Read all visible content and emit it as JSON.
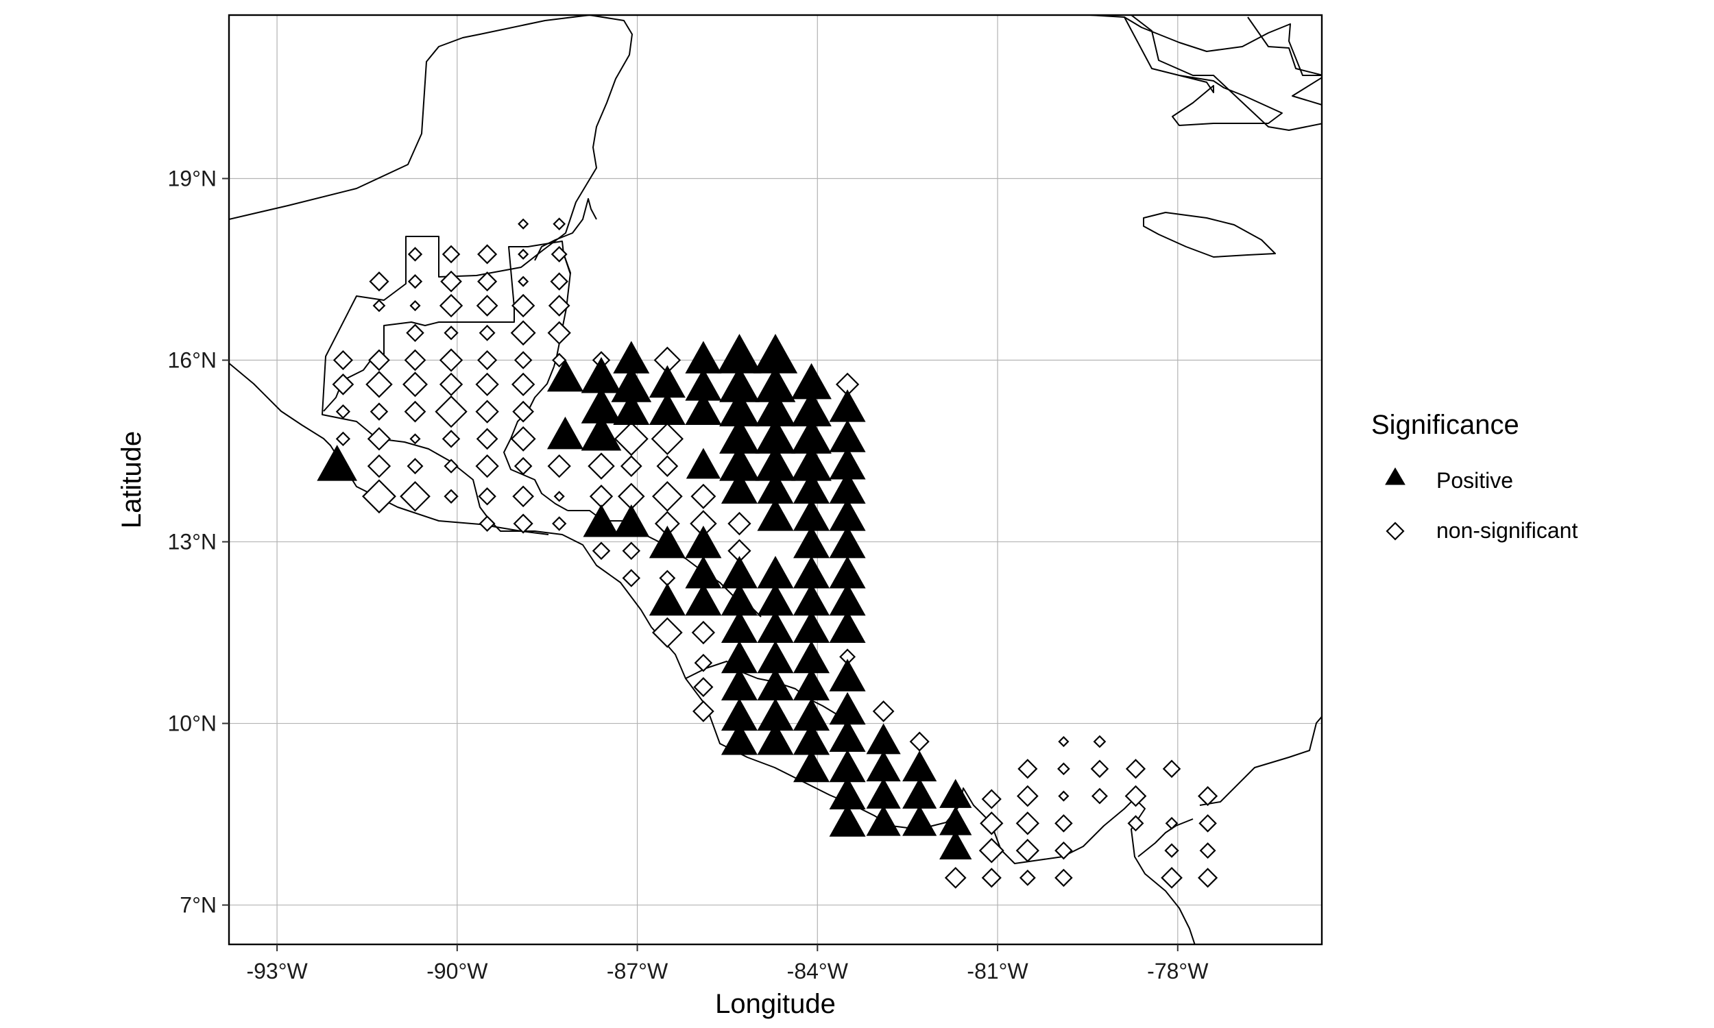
{
  "chart_data": {
    "type": "scatter",
    "subtype": "map",
    "xlabel": "Longitude",
    "ylabel": "Latitude",
    "xlim": [
      -93.8,
      -75.6
    ],
    "ylim": [
      6.35,
      21.7
    ],
    "xticks": [
      -93,
      -90,
      -87,
      -84,
      -81,
      -78
    ],
    "yticks": [
      7,
      10,
      13,
      16,
      19
    ],
    "xtick_labels": [
      "-93°W",
      "-90°W",
      "-87°W",
      "-84°W",
      "-81°W",
      "-78°W"
    ],
    "ytick_labels": [
      "7°N",
      "10°N",
      "13°N",
      "16°N",
      "19°N"
    ],
    "grid": true,
    "legend": {
      "title": "Significance",
      "position": "right",
      "entries": [
        {
          "label": "Positive",
          "shape": "triangle-filled"
        },
        {
          "label": "non-significant",
          "shape": "diamond-open"
        }
      ]
    },
    "series": [
      {
        "name": "Positive",
        "shape": "triangle-filled",
        "points": [
          [
            -92,
            14.25,
            1.0
          ],
          [
            -88.2,
            15.7,
            0.9
          ],
          [
            -88.2,
            14.75,
            0.9
          ],
          [
            -87.6,
            15.7,
            1.0
          ],
          [
            -87.6,
            15.2,
            1.0
          ],
          [
            -87.6,
            14.75,
            1.0
          ],
          [
            -87.6,
            13.3,
            0.9
          ],
          [
            -87.1,
            16.0,
            0.9
          ],
          [
            -87.1,
            15.55,
            1.0
          ],
          [
            -87.1,
            15.15,
            0.9
          ],
          [
            -87.1,
            13.3,
            0.9
          ],
          [
            -86.5,
            15.6,
            0.9
          ],
          [
            -86.5,
            15.15,
            0.9
          ],
          [
            -86.5,
            12.95,
            0.9
          ],
          [
            -86.5,
            12.0,
            0.9
          ],
          [
            -85.9,
            16.0,
            0.9
          ],
          [
            -85.9,
            15.55,
            0.9
          ],
          [
            -85.9,
            15.15,
            0.9
          ],
          [
            -85.9,
            14.25,
            0.85
          ],
          [
            -85.9,
            12.95,
            0.9
          ],
          [
            -85.9,
            12.45,
            0.9
          ],
          [
            -85.9,
            12.0,
            0.9
          ],
          [
            -85.3,
            16.05,
            1.1
          ],
          [
            -85.3,
            15.55,
            1.0
          ],
          [
            -85.3,
            15.15,
            1.0
          ],
          [
            -85.3,
            14.7,
            1.0
          ],
          [
            -85.3,
            14.25,
            1.0
          ],
          [
            -85.3,
            13.85,
            0.9
          ],
          [
            -85.3,
            12.45,
            0.9
          ],
          [
            -85.3,
            12.0,
            0.9
          ],
          [
            -85.3,
            11.55,
            0.9
          ],
          [
            -85.3,
            11.05,
            0.9
          ],
          [
            -85.3,
            10.6,
            0.9
          ],
          [
            -85.3,
            10.1,
            0.9
          ],
          [
            -85.3,
            9.7,
            0.9
          ],
          [
            -84.7,
            16.05,
            1.1
          ],
          [
            -84.7,
            15.55,
            1.0
          ],
          [
            -84.7,
            15.15,
            1.0
          ],
          [
            -84.7,
            14.7,
            1.0
          ],
          [
            -84.7,
            14.25,
            1.0
          ],
          [
            -84.7,
            13.85,
            0.9
          ],
          [
            -84.7,
            13.4,
            0.9
          ],
          [
            -84.7,
            12.45,
            0.9
          ],
          [
            -84.7,
            12.0,
            0.9
          ],
          [
            -84.7,
            11.55,
            0.9
          ],
          [
            -84.7,
            11.05,
            0.9
          ],
          [
            -84.7,
            10.6,
            0.9
          ],
          [
            -84.7,
            10.1,
            0.9
          ],
          [
            -84.7,
            9.7,
            0.9
          ],
          [
            -84.1,
            15.6,
            1.0
          ],
          [
            -84.1,
            15.15,
            1.0
          ],
          [
            -84.1,
            14.7,
            1.0
          ],
          [
            -84.1,
            14.25,
            1.0
          ],
          [
            -84.1,
            13.85,
            0.9
          ],
          [
            -84.1,
            13.4,
            0.9
          ],
          [
            -84.1,
            12.95,
            0.9
          ],
          [
            -84.1,
            12.45,
            0.9
          ],
          [
            -84.1,
            12.0,
            0.9
          ],
          [
            -84.1,
            11.55,
            0.9
          ],
          [
            -84.1,
            11.05,
            0.9
          ],
          [
            -84.1,
            10.6,
            0.9
          ],
          [
            -84.1,
            10.1,
            0.9
          ],
          [
            -84.1,
            9.7,
            0.9
          ],
          [
            -84.1,
            9.25,
            0.9
          ],
          [
            -83.5,
            15.2,
            0.9
          ],
          [
            -83.5,
            14.7,
            0.9
          ],
          [
            -83.5,
            14.25,
            0.9
          ],
          [
            -83.5,
            13.85,
            0.9
          ],
          [
            -83.5,
            13.4,
            0.9
          ],
          [
            -83.5,
            12.95,
            0.9
          ],
          [
            -83.5,
            12.45,
            0.9
          ],
          [
            -83.5,
            12.0,
            0.9
          ],
          [
            -83.5,
            11.55,
            0.9
          ],
          [
            -83.5,
            10.75,
            0.9
          ],
          [
            -83.5,
            10.2,
            0.9
          ],
          [
            -83.5,
            9.75,
            0.9
          ],
          [
            -83.5,
            9.25,
            0.9
          ],
          [
            -83.5,
            8.8,
            0.9
          ],
          [
            -83.5,
            8.35,
            0.9
          ],
          [
            -82.9,
            9.7,
            0.85
          ],
          [
            -82.9,
            9.25,
            0.85
          ],
          [
            -82.9,
            8.8,
            0.85
          ],
          [
            -82.9,
            8.35,
            0.85
          ],
          [
            -82.3,
            9.25,
            0.85
          ],
          [
            -82.3,
            8.8,
            0.85
          ],
          [
            -82.3,
            8.35,
            0.85
          ],
          [
            -81.7,
            8.8,
            0.8
          ],
          [
            -81.7,
            8.35,
            0.8
          ],
          [
            -81.7,
            7.95,
            0.8
          ]
        ]
      },
      {
        "name": "non-significant",
        "shape": "diamond-open",
        "points": [
          [
            -91.3,
            17.3,
            0.5
          ],
          [
            -90.7,
            17.75,
            0.35
          ],
          [
            -90.1,
            17.75,
            0.45
          ],
          [
            -89.5,
            17.75,
            0.5
          ],
          [
            -88.9,
            18.25,
            0.25
          ],
          [
            -88.9,
            17.75,
            0.25
          ],
          [
            -88.3,
            18.25,
            0.3
          ],
          [
            -88.3,
            17.75,
            0.4
          ],
          [
            -90.7,
            17.3,
            0.35
          ],
          [
            -90.1,
            17.3,
            0.55
          ],
          [
            -89.5,
            17.3,
            0.5
          ],
          [
            -88.9,
            17.3,
            0.25
          ],
          [
            -88.3,
            17.3,
            0.45
          ],
          [
            -91.3,
            16.9,
            0.3
          ],
          [
            -90.7,
            16.9,
            0.25
          ],
          [
            -90.1,
            16.9,
            0.6
          ],
          [
            -89.5,
            16.9,
            0.55
          ],
          [
            -88.9,
            16.9,
            0.6
          ],
          [
            -88.3,
            16.9,
            0.55
          ],
          [
            -90.7,
            16.45,
            0.45
          ],
          [
            -90.1,
            16.45,
            0.35
          ],
          [
            -89.5,
            16.45,
            0.4
          ],
          [
            -88.9,
            16.45,
            0.65
          ],
          [
            -88.3,
            16.45,
            0.6
          ],
          [
            -91.9,
            16.0,
            0.5
          ],
          [
            -91.3,
            16.0,
            0.55
          ],
          [
            -90.7,
            16.0,
            0.55
          ],
          [
            -90.1,
            16.0,
            0.6
          ],
          [
            -89.5,
            16.0,
            0.5
          ],
          [
            -88.9,
            16.0,
            0.45
          ],
          [
            -88.3,
            16.0,
            0.35
          ],
          [
            -87.6,
            16.0,
            0.45
          ],
          [
            -86.5,
            16.0,
            0.7
          ],
          [
            -83.5,
            15.6,
            0.6
          ],
          [
            -91.9,
            15.6,
            0.55
          ],
          [
            -91.3,
            15.6,
            0.7
          ],
          [
            -90.7,
            15.6,
            0.65
          ],
          [
            -90.1,
            15.6,
            0.6
          ],
          [
            -89.5,
            15.6,
            0.6
          ],
          [
            -88.9,
            15.6,
            0.6
          ],
          [
            -91.9,
            15.15,
            0.35
          ],
          [
            -91.3,
            15.15,
            0.45
          ],
          [
            -90.7,
            15.15,
            0.55
          ],
          [
            -90.1,
            15.15,
            0.85
          ],
          [
            -89.5,
            15.15,
            0.6
          ],
          [
            -88.9,
            15.15,
            0.55
          ],
          [
            -91.9,
            14.7,
            0.35
          ],
          [
            -91.3,
            14.7,
            0.6
          ],
          [
            -90.7,
            14.7,
            0.25
          ],
          [
            -90.1,
            14.7,
            0.45
          ],
          [
            -89.5,
            14.7,
            0.55
          ],
          [
            -88.9,
            14.7,
            0.65
          ],
          [
            -87.1,
            14.7,
            0.9
          ],
          [
            -86.5,
            14.7,
            0.85
          ],
          [
            -91.3,
            14.25,
            0.6
          ],
          [
            -90.7,
            14.25,
            0.4
          ],
          [
            -90.1,
            14.25,
            0.35
          ],
          [
            -89.5,
            14.25,
            0.6
          ],
          [
            -88.9,
            14.25,
            0.45
          ],
          [
            -88.3,
            14.25,
            0.6
          ],
          [
            -87.6,
            14.25,
            0.7
          ],
          [
            -87.1,
            14.25,
            0.55
          ],
          [
            -86.5,
            14.25,
            0.55
          ],
          [
            -91.3,
            13.75,
            0.9
          ],
          [
            -90.7,
            13.75,
            0.8
          ],
          [
            -90.1,
            13.75,
            0.35
          ],
          [
            -89.5,
            13.75,
            0.45
          ],
          [
            -88.9,
            13.75,
            0.55
          ],
          [
            -88.3,
            13.75,
            0.25
          ],
          [
            -87.6,
            13.75,
            0.6
          ],
          [
            -87.1,
            13.75,
            0.7
          ],
          [
            -86.5,
            13.75,
            0.8
          ],
          [
            -85.9,
            13.75,
            0.65
          ],
          [
            -89.5,
            13.3,
            0.4
          ],
          [
            -88.9,
            13.3,
            0.5
          ],
          [
            -88.3,
            13.3,
            0.35
          ],
          [
            -86.5,
            13.3,
            0.65
          ],
          [
            -85.9,
            13.3,
            0.7
          ],
          [
            -85.3,
            13.3,
            0.6
          ],
          [
            -87.6,
            12.85,
            0.45
          ],
          [
            -87.1,
            12.85,
            0.45
          ],
          [
            -85.3,
            12.85,
            0.6
          ],
          [
            -87.1,
            12.4,
            0.45
          ],
          [
            -86.5,
            12.4,
            0.4
          ],
          [
            -86.5,
            11.5,
            0.8
          ],
          [
            -85.9,
            11.5,
            0.6
          ],
          [
            -85.9,
            11.0,
            0.45
          ],
          [
            -85.9,
            10.6,
            0.5
          ],
          [
            -85.9,
            10.2,
            0.55
          ],
          [
            -83.5,
            11.1,
            0.4
          ],
          [
            -82.9,
            10.2,
            0.55
          ],
          [
            -82.3,
            9.7,
            0.5
          ],
          [
            -80.5,
            9.25,
            0.5
          ],
          [
            -79.9,
            9.25,
            0.3
          ],
          [
            -80.5,
            8.8,
            0.55
          ],
          [
            -79.9,
            8.8,
            0.25
          ],
          [
            -79.3,
            8.8,
            0.4
          ],
          [
            -78.7,
            8.8,
            0.55
          ],
          [
            -79.9,
            9.7,
            0.25
          ],
          [
            -79.3,
            9.7,
            0.3
          ],
          [
            -79.3,
            9.25,
            0.45
          ],
          [
            -78.7,
            9.25,
            0.5
          ],
          [
            -78.1,
            9.25,
            0.45
          ],
          [
            -81.1,
            8.75,
            0.5
          ],
          [
            -81.1,
            8.35,
            0.6
          ],
          [
            -80.5,
            8.35,
            0.6
          ],
          [
            -79.9,
            8.35,
            0.45
          ],
          [
            -81.1,
            7.9,
            0.65
          ],
          [
            -80.5,
            7.9,
            0.6
          ],
          [
            -79.9,
            7.9,
            0.45
          ],
          [
            -81.7,
            7.45,
            0.55
          ],
          [
            -81.1,
            7.45,
            0.5
          ],
          [
            -80.5,
            7.45,
            0.4
          ],
          [
            -79.9,
            7.45,
            0.45
          ],
          [
            -78.7,
            8.35,
            0.4
          ],
          [
            -78.1,
            8.35,
            0.3
          ],
          [
            -77.5,
            8.35,
            0.45
          ],
          [
            -77.5,
            8.8,
            0.5
          ],
          [
            -78.1,
            7.9,
            0.35
          ],
          [
            -77.5,
            7.9,
            0.4
          ],
          [
            -78.1,
            7.45,
            0.55
          ],
          [
            -77.5,
            7.45,
            0.5
          ]
        ]
      }
    ]
  }
}
